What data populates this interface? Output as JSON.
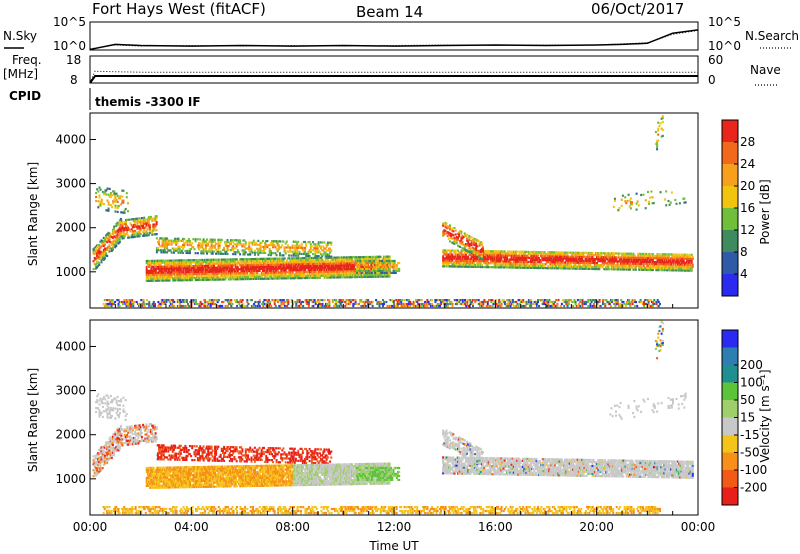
{
  "header": {
    "station": "Fort Hays West (fitACF)",
    "beam": "Beam 14",
    "date": "06/Oct/2017"
  },
  "colors": {
    "power": [
      "#2a2af0",
      "#2f5aa8",
      "#3f8a5e",
      "#6fbf3a",
      "#f2c40e",
      "#f7a01c",
      "#f2681d",
      "#e8261b"
    ],
    "velocity": [
      "#e8201a",
      "#f25a16",
      "#f79018",
      "#f4c419",
      "#c8c8c8",
      "#9fcf6a",
      "#5cc43a",
      "#1f8f8f",
      "#2c7fb0",
      "#2a2af0"
    ]
  },
  "chart_data": [
    {
      "type": "line",
      "name_left": "N.Sky",
      "name_right": "N.Search",
      "left_ticks": [
        "10^5",
        "10^0"
      ],
      "right_ticks": [
        "10^5",
        "10^0"
      ],
      "x": [
        0,
        1,
        2,
        4,
        6,
        8,
        10,
        12,
        14,
        16,
        18,
        20,
        21,
        22,
        23,
        24
      ],
      "series": [
        {
          "name": "N.Sky",
          "values": [
            0.1,
            1.0,
            0.8,
            0.7,
            0.8,
            0.7,
            0.8,
            0.7,
            0.8,
            0.9,
            0.8,
            0.9,
            1.0,
            1.2,
            3.0,
            3.6
          ]
        },
        {
          "name": "N.Search",
          "values": [
            0.2,
            0.9,
            0.7,
            0.8,
            0.7,
            0.8,
            0.7,
            0.8,
            0.9,
            0.8,
            0.9,
            0.9,
            1.1,
            1.3,
            2.8,
            3.5
          ]
        }
      ],
      "ylim": [
        0,
        5
      ]
    },
    {
      "type": "line",
      "name_left": "Freq.",
      "unit_left": "[MHz]",
      "name_right": "Nave",
      "left_ticks": [
        "18",
        "8"
      ],
      "right_ticks": [
        "60",
        "0"
      ],
      "x": [
        0,
        0.2,
        2,
        4,
        8,
        12,
        14,
        18,
        22,
        24
      ],
      "series": [
        {
          "name": "Freq.",
          "values": [
            8,
            10.6,
            10.6,
            10.6,
            10.6,
            10.6,
            10.6,
            10.6,
            10.6,
            10.6
          ]
        },
        {
          "name": "Nave",
          "values": [
            0,
            26,
            24,
            24,
            24,
            24,
            24,
            24,
            24,
            24
          ]
        }
      ],
      "ylim": [
        8,
        18
      ]
    },
    {
      "type": "table",
      "label": "CPID",
      "value": "themis -3300 IF"
    },
    {
      "type": "heatmap",
      "ylabel": "Slant Range [km]",
      "xlim": [
        0,
        24
      ],
      "ylim": [
        180,
        4600
      ],
      "y_ticks": [
        1000,
        2000,
        3000,
        4000
      ],
      "colorbar_label": "Power [dB]",
      "colorbar_ticks": [
        4,
        8,
        12,
        16,
        20,
        24,
        28
      ],
      "colorbar_range": [
        0,
        32
      ]
    },
    {
      "type": "heatmap",
      "ylabel": "Slant Range [km]",
      "xlabel": "Time UT",
      "xlim": [
        0,
        24
      ],
      "ylim": [
        180,
        4600
      ],
      "x_ticks": [
        "00:00",
        "04:00",
        "08:00",
        "12:00",
        "16:00",
        "20:00",
        "00:00"
      ],
      "y_ticks": [
        1000,
        2000,
        3000,
        4000
      ],
      "colorbar_label": "Velocity [m s⁻¹]",
      "colorbar_ticks": [
        "-200",
        "-100",
        "-50",
        "-15",
        "15",
        "50",
        "100",
        "200"
      ]
    }
  ]
}
